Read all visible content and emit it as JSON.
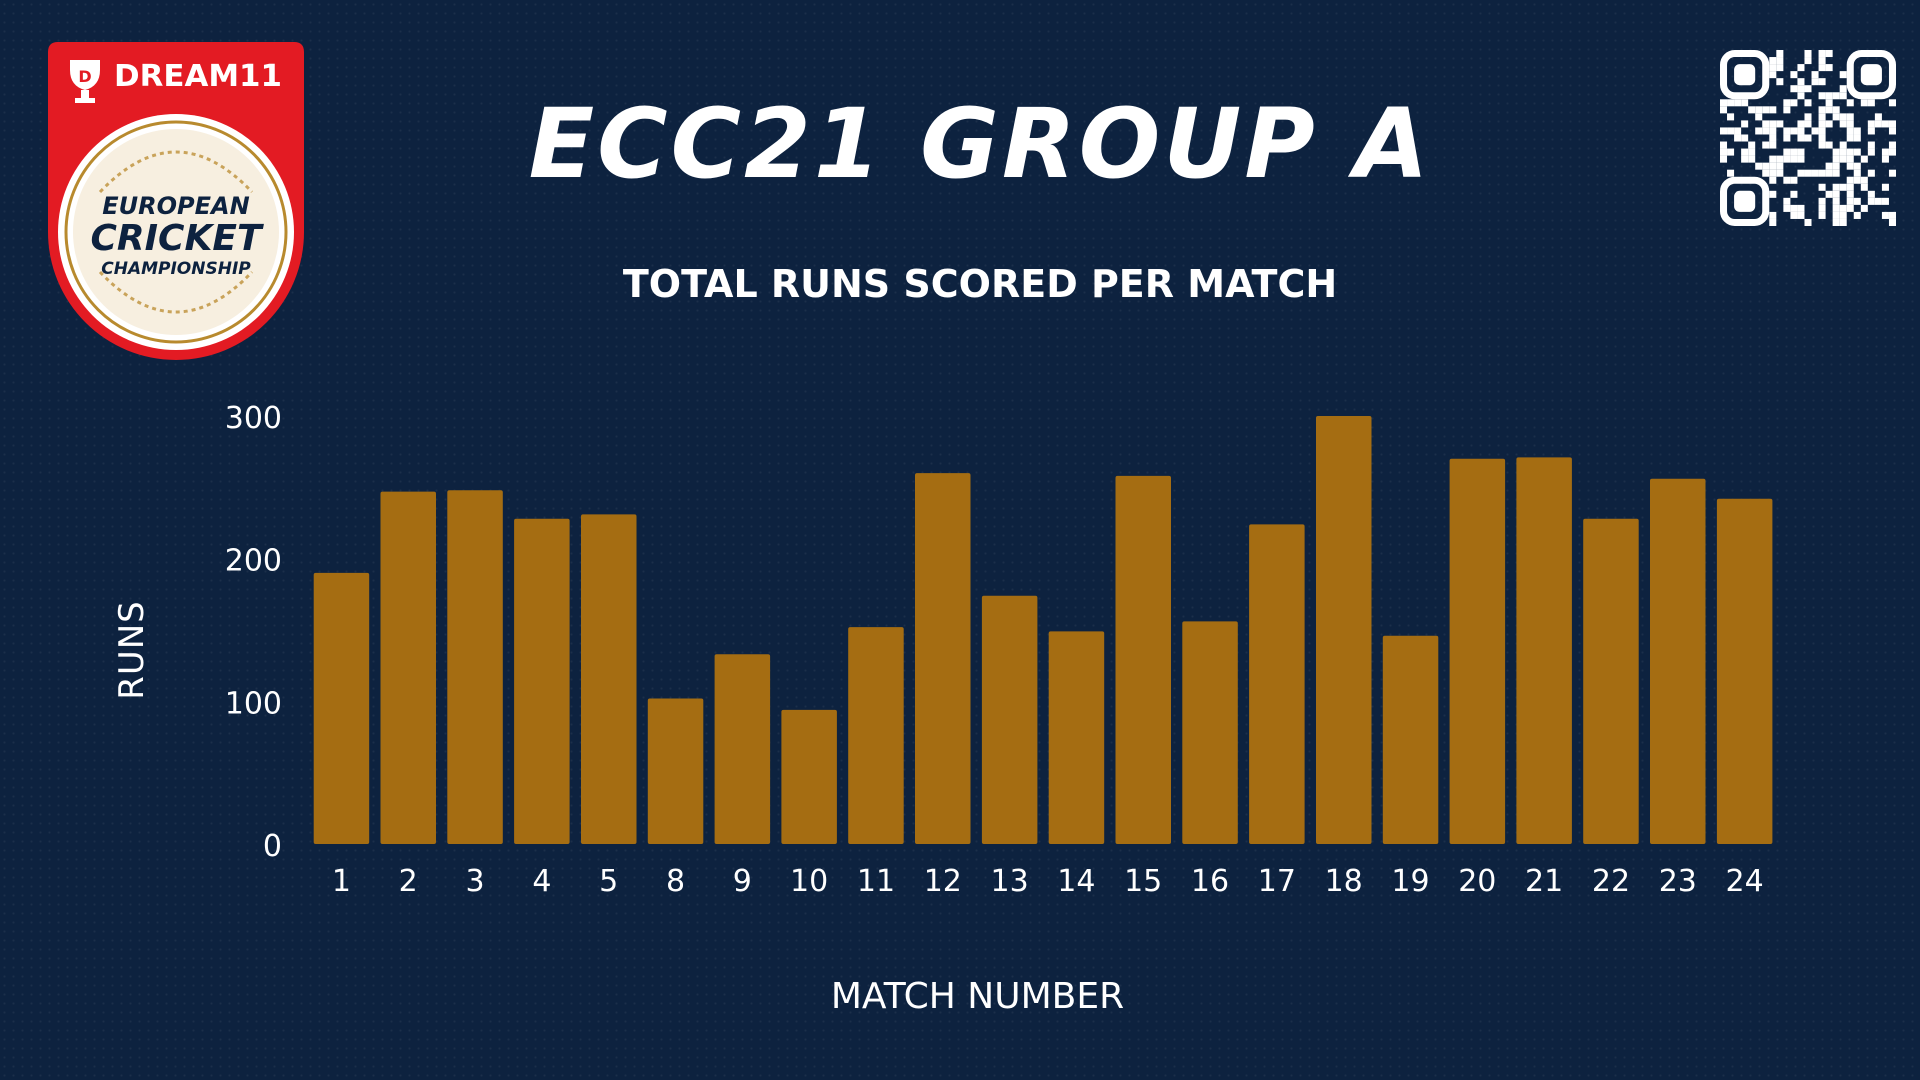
{
  "header": {
    "title": "ECC21 GROUP A",
    "subtitle": "TOTAL RUNS SCORED PER MATCH"
  },
  "logo": {
    "brand": "DREAM11",
    "line1": "EUROPEAN",
    "line2": "CRICKET",
    "line3": "CHAMPIONSHIP"
  },
  "colors": {
    "background": "#0d223f",
    "bar": "#a56d12",
    "text": "#ffffff",
    "logo_red": "#e31b23"
  },
  "chart_data": {
    "type": "bar",
    "title": "TOTAL RUNS SCORED PER MATCH",
    "xlabel": "MATCH NUMBER",
    "ylabel": "RUNS",
    "categories": [
      "1",
      "2",
      "3",
      "4",
      "5",
      "8",
      "9",
      "10",
      "11",
      "12",
      "13",
      "14",
      "15",
      "16",
      "17",
      "18",
      "19",
      "20",
      "21",
      "22",
      "23",
      "24"
    ],
    "values": [
      190,
      247,
      248,
      228,
      231,
      102,
      133,
      94,
      152,
      260,
      174,
      149,
      258,
      156,
      224,
      300,
      146,
      270,
      271,
      228,
      256,
      242
    ],
    "ylim": [
      0,
      300
    ],
    "yticks": [
      0,
      100,
      200,
      300
    ],
    "grid": false,
    "legend": "none"
  }
}
